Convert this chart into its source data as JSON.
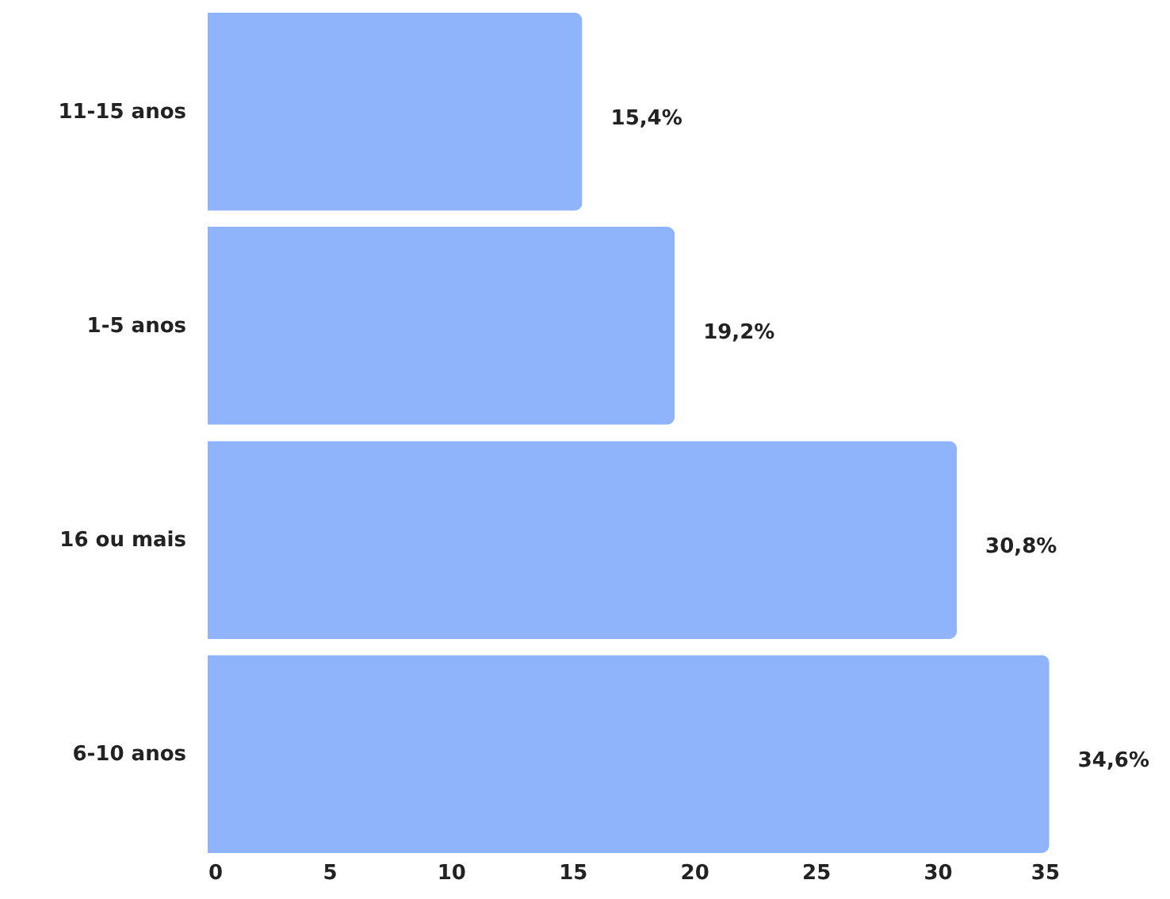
{
  "chart_data": {
    "type": "bar",
    "orientation": "horizontal",
    "categories": [
      "11-15 anos",
      "1-5 anos",
      "16 ou mais",
      "6-10 anos"
    ],
    "values": [
      15.4,
      19.2,
      30.8,
      34.6
    ],
    "value_labels": [
      "15,4%",
      "19,2%",
      "30,8%",
      "34,6%"
    ],
    "color": "#8fb4fc",
    "xlim": [
      0,
      35
    ],
    "xticks": [
      0,
      5,
      10,
      15,
      20,
      25,
      30,
      35
    ],
    "grid": false
  }
}
